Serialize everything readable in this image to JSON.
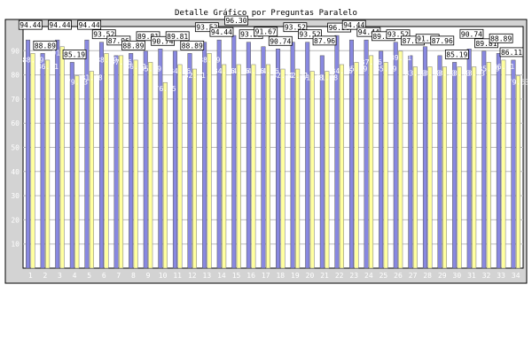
{
  "chart_data": {
    "type": "bar",
    "title": "Detalle Gráfico por Preguntas Paralelo",
    "xlabel": "",
    "ylabel": "",
    "ylim": [
      0,
      100
    ],
    "yticks": [
      10,
      20,
      30,
      40,
      50,
      60,
      70,
      80,
      90
    ],
    "grid": true,
    "legend": "none",
    "categories": [
      "1",
      "2",
      "3",
      "4",
      "5",
      "6",
      "7",
      "8",
      "9",
      "10",
      "11",
      "12",
      "13",
      "14",
      "15",
      "16",
      "17",
      "18",
      "19",
      "20",
      "21",
      "22",
      "23",
      "24",
      "25",
      "26",
      "27",
      "28",
      "29",
      "30",
      "31",
      "32",
      "33",
      "34"
    ],
    "series": [
      {
        "color": "#8888e0",
        "values": [
          94.44,
          88.89,
          94.44,
          85.19,
          94.44,
          93.52,
          87.96,
          88.89,
          89.81,
          90.74,
          89.81,
          88.89,
          93.52,
          94.44,
          96.3,
          93.52,
          91.67,
          90.74,
          93.52,
          93.52,
          87.96,
          96.3,
          94.44,
          94.44,
          89.81,
          93.52,
          87.96,
          91.67,
          87.96,
          85.19,
          90.74,
          89.81,
          88.89,
          86.11
        ]
      },
      {
        "color": "#ffffa0",
        "values": [
          88.89,
          86.11,
          91.67,
          79.63,
          81.48,
          88.89,
          87.96,
          86.11,
          85.19,
          76.85,
          84.26,
          82.41,
          88.89,
          84.26,
          84.26,
          84.26,
          84.26,
          82.41,
          82.41,
          81.48,
          81.48,
          84.26,
          85.19,
          87.96,
          85.19,
          89.81,
          83.33,
          83.33,
          83.33,
          83.33,
          83.33,
          85.19,
          86.11,
          79.63
        ]
      }
    ]
  }
}
